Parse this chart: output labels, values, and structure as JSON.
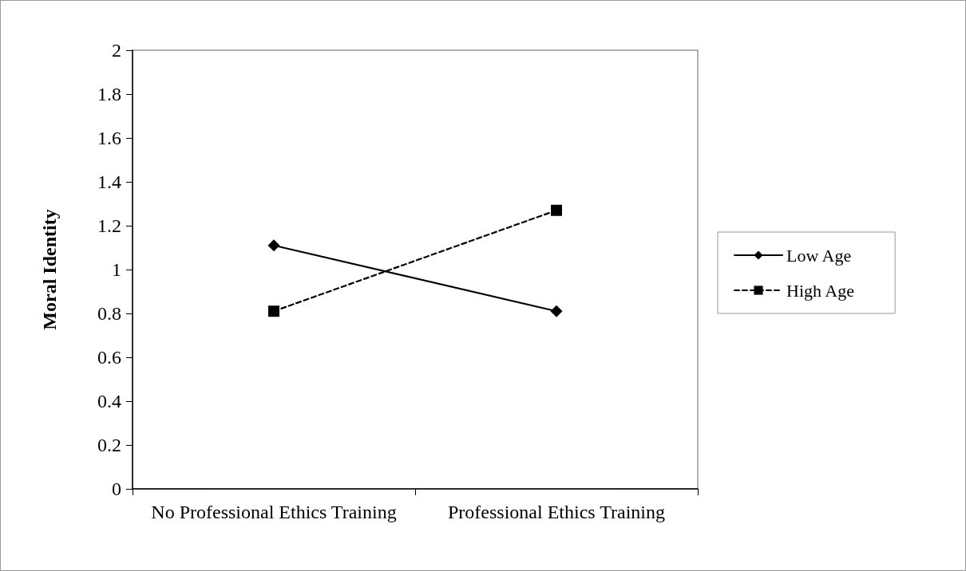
{
  "chart_data": {
    "type": "line",
    "ylabel": "Moral Identity",
    "categories": [
      "No Professional Ethics Training",
      "Professional Ethics Training"
    ],
    "series": [
      {
        "name": "Low Age",
        "color": "#000000",
        "values": [
          1.11,
          0.81
        ],
        "marker": "diamond",
        "line_style": "solid"
      },
      {
        "name": "High Age",
        "color": "#000000",
        "values": [
          0.81,
          1.27
        ],
        "marker": "square",
        "line_style": "dashed"
      }
    ],
    "ylim": [
      0,
      2
    ],
    "yticks": [
      0,
      0.2,
      0.4,
      0.6,
      0.8,
      1,
      1.2,
      1.4,
      1.6,
      1.8,
      2
    ],
    "grid": false,
    "legend": "right"
  }
}
